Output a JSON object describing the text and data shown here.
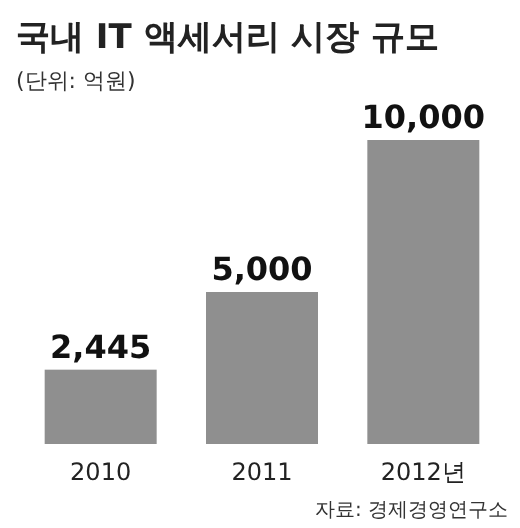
{
  "chart_data": {
    "type": "bar",
    "title": "국내 IT 액세서리 시장 규모",
    "subtitle": "(단위: 억원)",
    "categories": [
      "2010",
      "2011",
      "2012년"
    ],
    "values": [
      2445,
      5000,
      10000
    ],
    "value_labels": [
      "2,445",
      "5,000",
      "10,000"
    ],
    "color": "#8f8f8f",
    "annotations": [
      "자료: 경제경영연구소"
    ]
  }
}
